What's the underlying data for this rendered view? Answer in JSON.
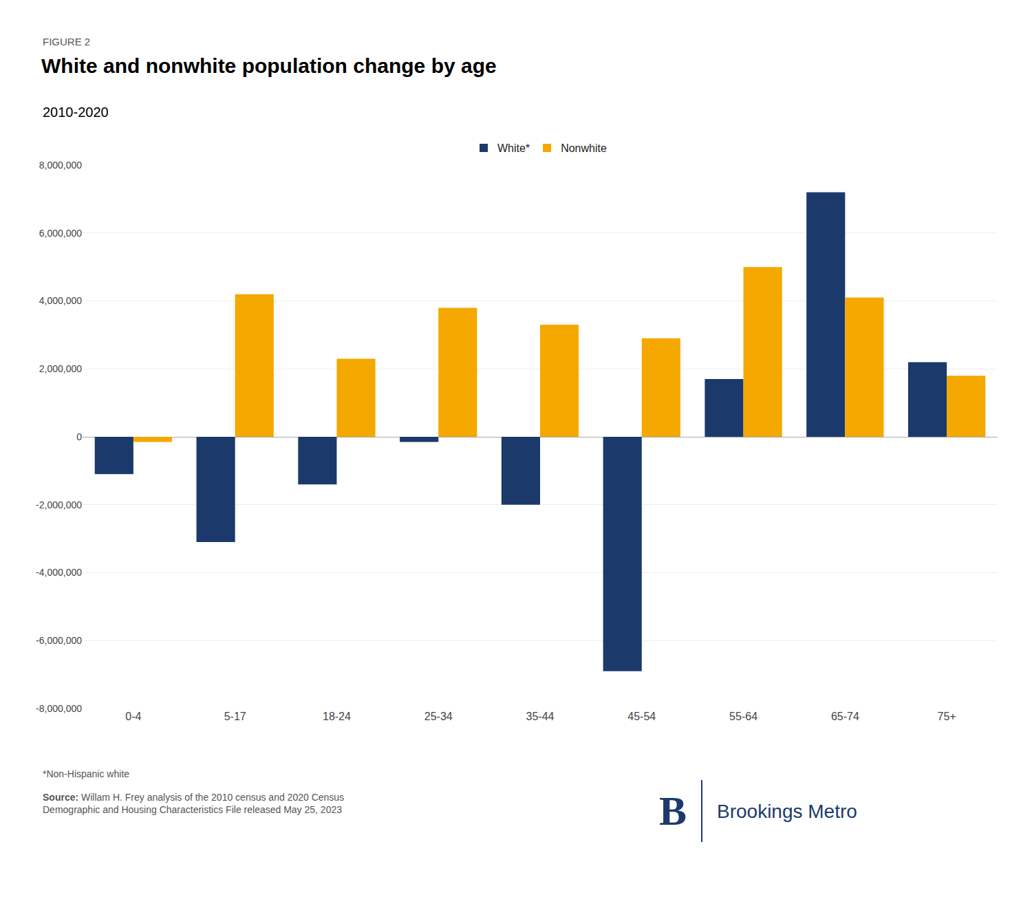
{
  "chart_data": {
    "type": "bar",
    "figure_label": "FIGURE 2",
    "title": "White and nonwhite population change by age",
    "subtitle": "2010-2020",
    "categories": [
      "0-4",
      "5-17",
      "18-24",
      "25-34",
      "35-44",
      "45-54",
      "55-64",
      "65-74",
      "75+"
    ],
    "series": [
      {
        "name": "White*",
        "color": "#1b3a6b",
        "values": [
          -1100000,
          -3100000,
          -1400000,
          -150000,
          -2000000,
          -6900000,
          1700000,
          7200000,
          2200000
        ]
      },
      {
        "name": "Nonwhite",
        "color": "#f5a800",
        "values": [
          -150000,
          4200000,
          2300000,
          3800000,
          3300000,
          2900000,
          5000000,
          4100000,
          1800000
        ]
      }
    ],
    "ylim": [
      -8000000,
      8000000
    ],
    "yticks": [
      {
        "value": -8000000,
        "label": "-8,000,000"
      },
      {
        "value": -6000000,
        "label": "-6,000,000"
      },
      {
        "value": -4000000,
        "label": "-4,000,000"
      },
      {
        "value": -2000000,
        "label": "-2,000,000"
      },
      0,
      {
        "value": 2000000,
        "label": "2,000,000"
      },
      {
        "value": 4000000,
        "label": "4,000,000"
      },
      {
        "value": 6000000,
        "label": "6,000,000"
      },
      {
        "value": 8000000,
        "label": "8,000,000"
      }
    ],
    "grid": true,
    "legend": "top",
    "notes": [
      "*Non-Hispanic white"
    ],
    "source_label": "Source:",
    "source": "Willam H. Frey analysis of the 2010 census and 2020 Census\nDemographic and Housing Characteristics File released May 25, 2023",
    "logo": [
      "B",
      "Brookings Metro"
    ]
  }
}
